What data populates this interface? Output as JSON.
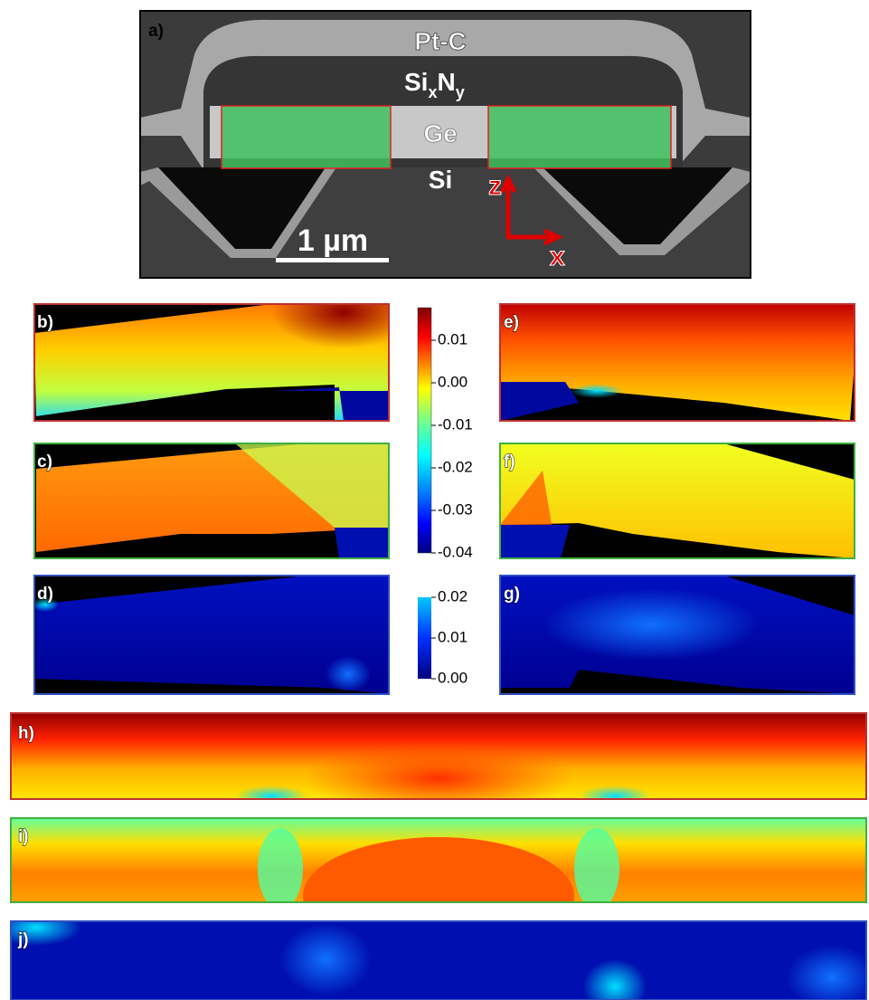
{
  "panel_labels": {
    "a": "a)",
    "b": "b)",
    "c": "c)",
    "d": "d)",
    "e": "e)",
    "f": "f)",
    "g": "g)",
    "h": "h)",
    "i": "i)",
    "j": "j)"
  },
  "sem": {
    "pt_c": "Pt-C",
    "si_x_n_y": [
      "Si",
      "x",
      "N",
      "y"
    ],
    "ge": "Ge",
    "si": "Si",
    "scale_bar": "1 µm",
    "axis_z": "z",
    "axis_x": "x"
  },
  "colorbar_strain": {
    "ticks": [
      "0.01",
      "0.00",
      "-0.01",
      "-0.02",
      "-0.03",
      "-0.04"
    ]
  },
  "colorbar_shear": {
    "ticks": [
      "0.02",
      "0.01",
      "0.00"
    ]
  }
}
